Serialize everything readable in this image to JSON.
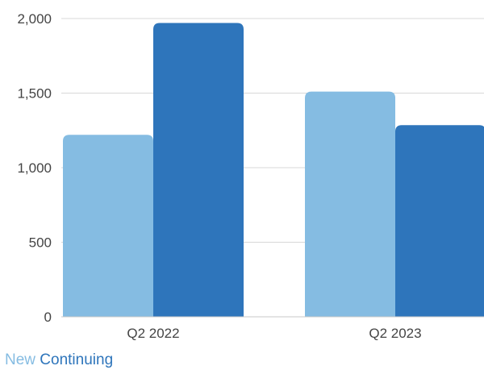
{
  "chart_data": {
    "type": "bar",
    "title": "",
    "xlabel": "",
    "ylabel": "",
    "categories": [
      "Q2 2022",
      "Q2 2023"
    ],
    "series": [
      {
        "name": "New",
        "values": [
          1220,
          1510
        ],
        "color": "#85bce2"
      },
      {
        "name": "Continuing",
        "values": [
          1970,
          1285
        ],
        "color": "#2e75bb"
      }
    ],
    "ylim": [
      0,
      2000
    ],
    "yticks": [
      0,
      500,
      1000,
      1500,
      2000
    ],
    "ytick_labels": [
      "0",
      "500",
      "1,000",
      "1,500",
      "2,000"
    ],
    "grid": true,
    "legend": {
      "position": "bottom-left"
    }
  }
}
